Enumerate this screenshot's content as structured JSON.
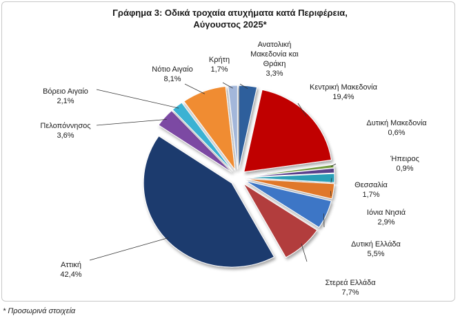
{
  "chart_data": {
    "type": "pie",
    "title": "Γράφημα 3: Οδικά τροχαία ατυχήματα κατά Περιφέρεια, Αύγουστος 2025*",
    "categories": [
      "Ανατολική Μακεδονία και Θράκη",
      "Κεντρική Μακεδονία",
      "Δυτική Μακεδονία",
      "Ήπειρος",
      "Θεσσαλία",
      "Ιόνια Νησιά",
      "Δυτική Ελλάδα",
      "Στερεά Ελλάδα",
      "Αττική",
      "Πελοπόννησος",
      "Βόρειο Αιγαίο",
      "Νότιο Αιγαίο",
      "Κρήτη"
    ],
    "values": [
      3.3,
      19.4,
      0.6,
      0.9,
      1.7,
      2.9,
      5.5,
      7.7,
      42.4,
      3.6,
      2.1,
      8.1,
      1.7
    ],
    "value_labels": [
      "3,3%",
      "19,4%",
      "0,6%",
      "0,9%",
      "1,7%",
      "2,9%",
      "5,5%",
      "7,7%",
      "42,4%",
      "3,6%",
      "2,1%",
      "8,1%",
      "1,7%"
    ],
    "colors": [
      "#2f5f9c",
      "#c00000",
      "#6f9a3b",
      "#5a3f8c",
      "#2a9fb7",
      "#e0782a",
      "#3c76c6",
      "#b23c3c",
      "#1f3a6e",
      "#7b4aa3",
      "#3ab2d3",
      "#f08c32",
      "#a3b7da"
    ],
    "footnote": "* Προσωρινά στοιχεία"
  }
}
